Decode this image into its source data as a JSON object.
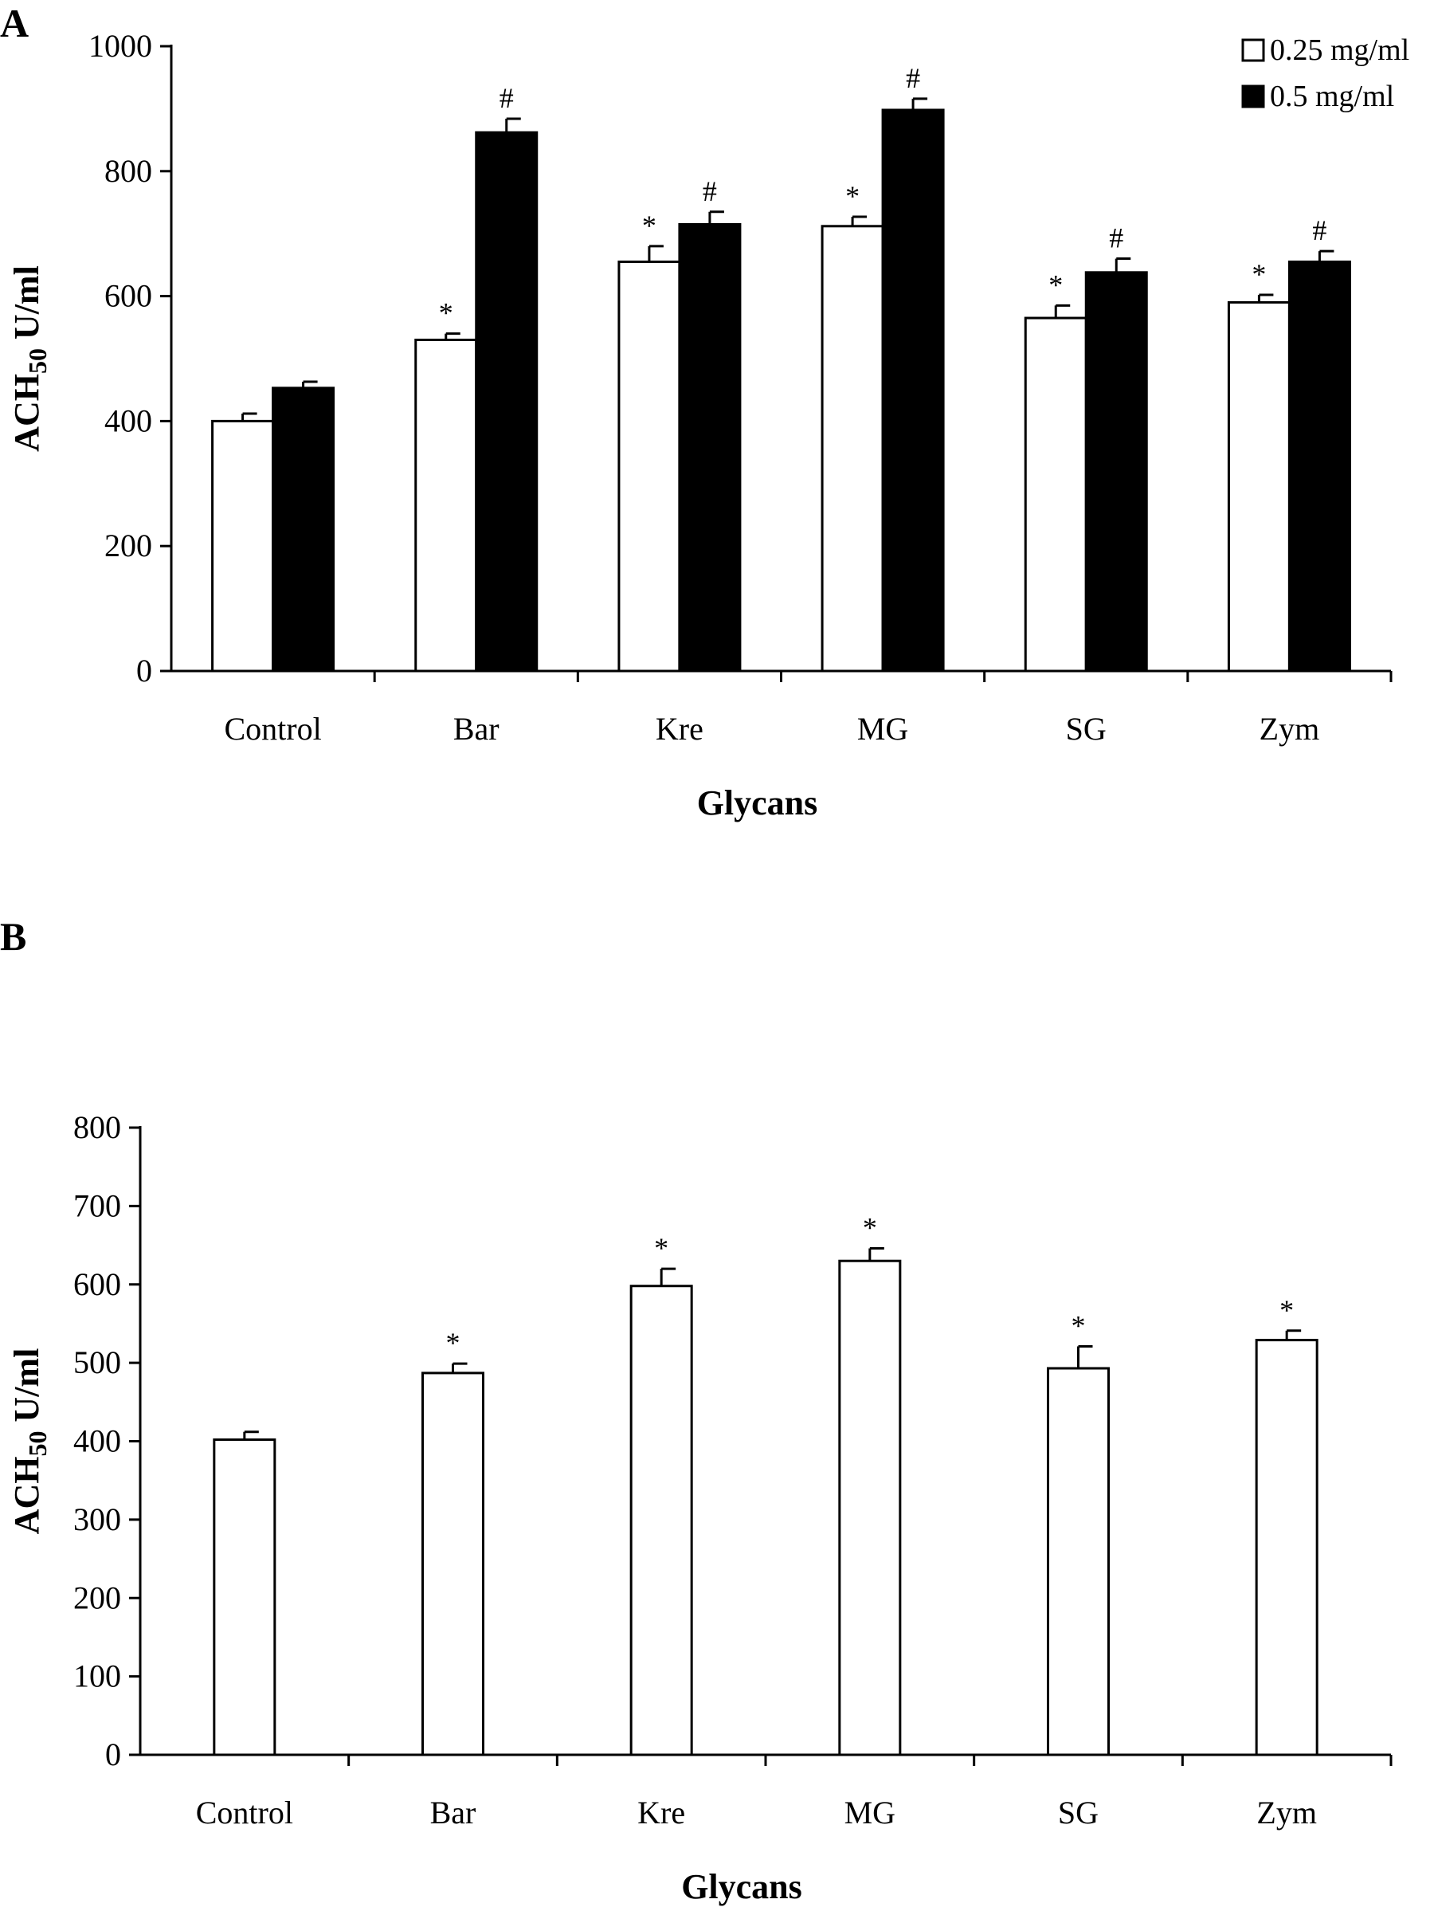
{
  "chart_data": [
    {
      "panel_label": "A",
      "type": "bar",
      "categories": [
        "Control",
        "Bar",
        "Kre",
        "MG",
        "SG",
        "Zym"
      ],
      "series": [
        {
          "name": "0.25 mg/ml",
          "color": "#ffffff",
          "values": [
            400,
            530,
            655,
            712,
            565,
            590
          ],
          "errors": [
            12,
            10,
            25,
            15,
            20,
            12
          ],
          "marks": [
            "",
            "*",
            "*",
            "*",
            "*",
            "*"
          ]
        },
        {
          "name": "0.5 mg/ml",
          "color": "#000000",
          "values": [
            453,
            862,
            715,
            898,
            638,
            655
          ],
          "errors": [
            10,
            22,
            20,
            18,
            22,
            17
          ],
          "marks": [
            "",
            "#",
            "#",
            "#",
            "#",
            "#"
          ]
        }
      ],
      "ylabel": "ACH",
      "ylabel_sub": "50",
      "ylabel_unit": " U/ml",
      "xlabel": "Glycans",
      "ylim": [
        0,
        1000
      ],
      "yticks": [
        0,
        200,
        400,
        600,
        800,
        1000
      ],
      "legend": "top-right",
      "grid": false
    },
    {
      "panel_label": "B",
      "type": "bar",
      "categories": [
        "Control",
        "Bar",
        "Kre",
        "MG",
        "SG",
        "Zym"
      ],
      "series": [
        {
          "color": "#ffffff",
          "values": [
            402,
            487,
            598,
            630,
            493,
            529
          ],
          "errors": [
            10,
            12,
            22,
            16,
            28,
            12
          ],
          "marks": [
            "",
            "*",
            "*",
            "*",
            "*",
            "*"
          ]
        }
      ],
      "ylabel": "ACH",
      "ylabel_sub": "50",
      "ylabel_unit": " U/ml",
      "xlabel": "Glycans",
      "ylim": [
        0,
        800
      ],
      "yticks": [
        0,
        100,
        200,
        300,
        400,
        500,
        600,
        700,
        800
      ],
      "grid": false
    }
  ]
}
